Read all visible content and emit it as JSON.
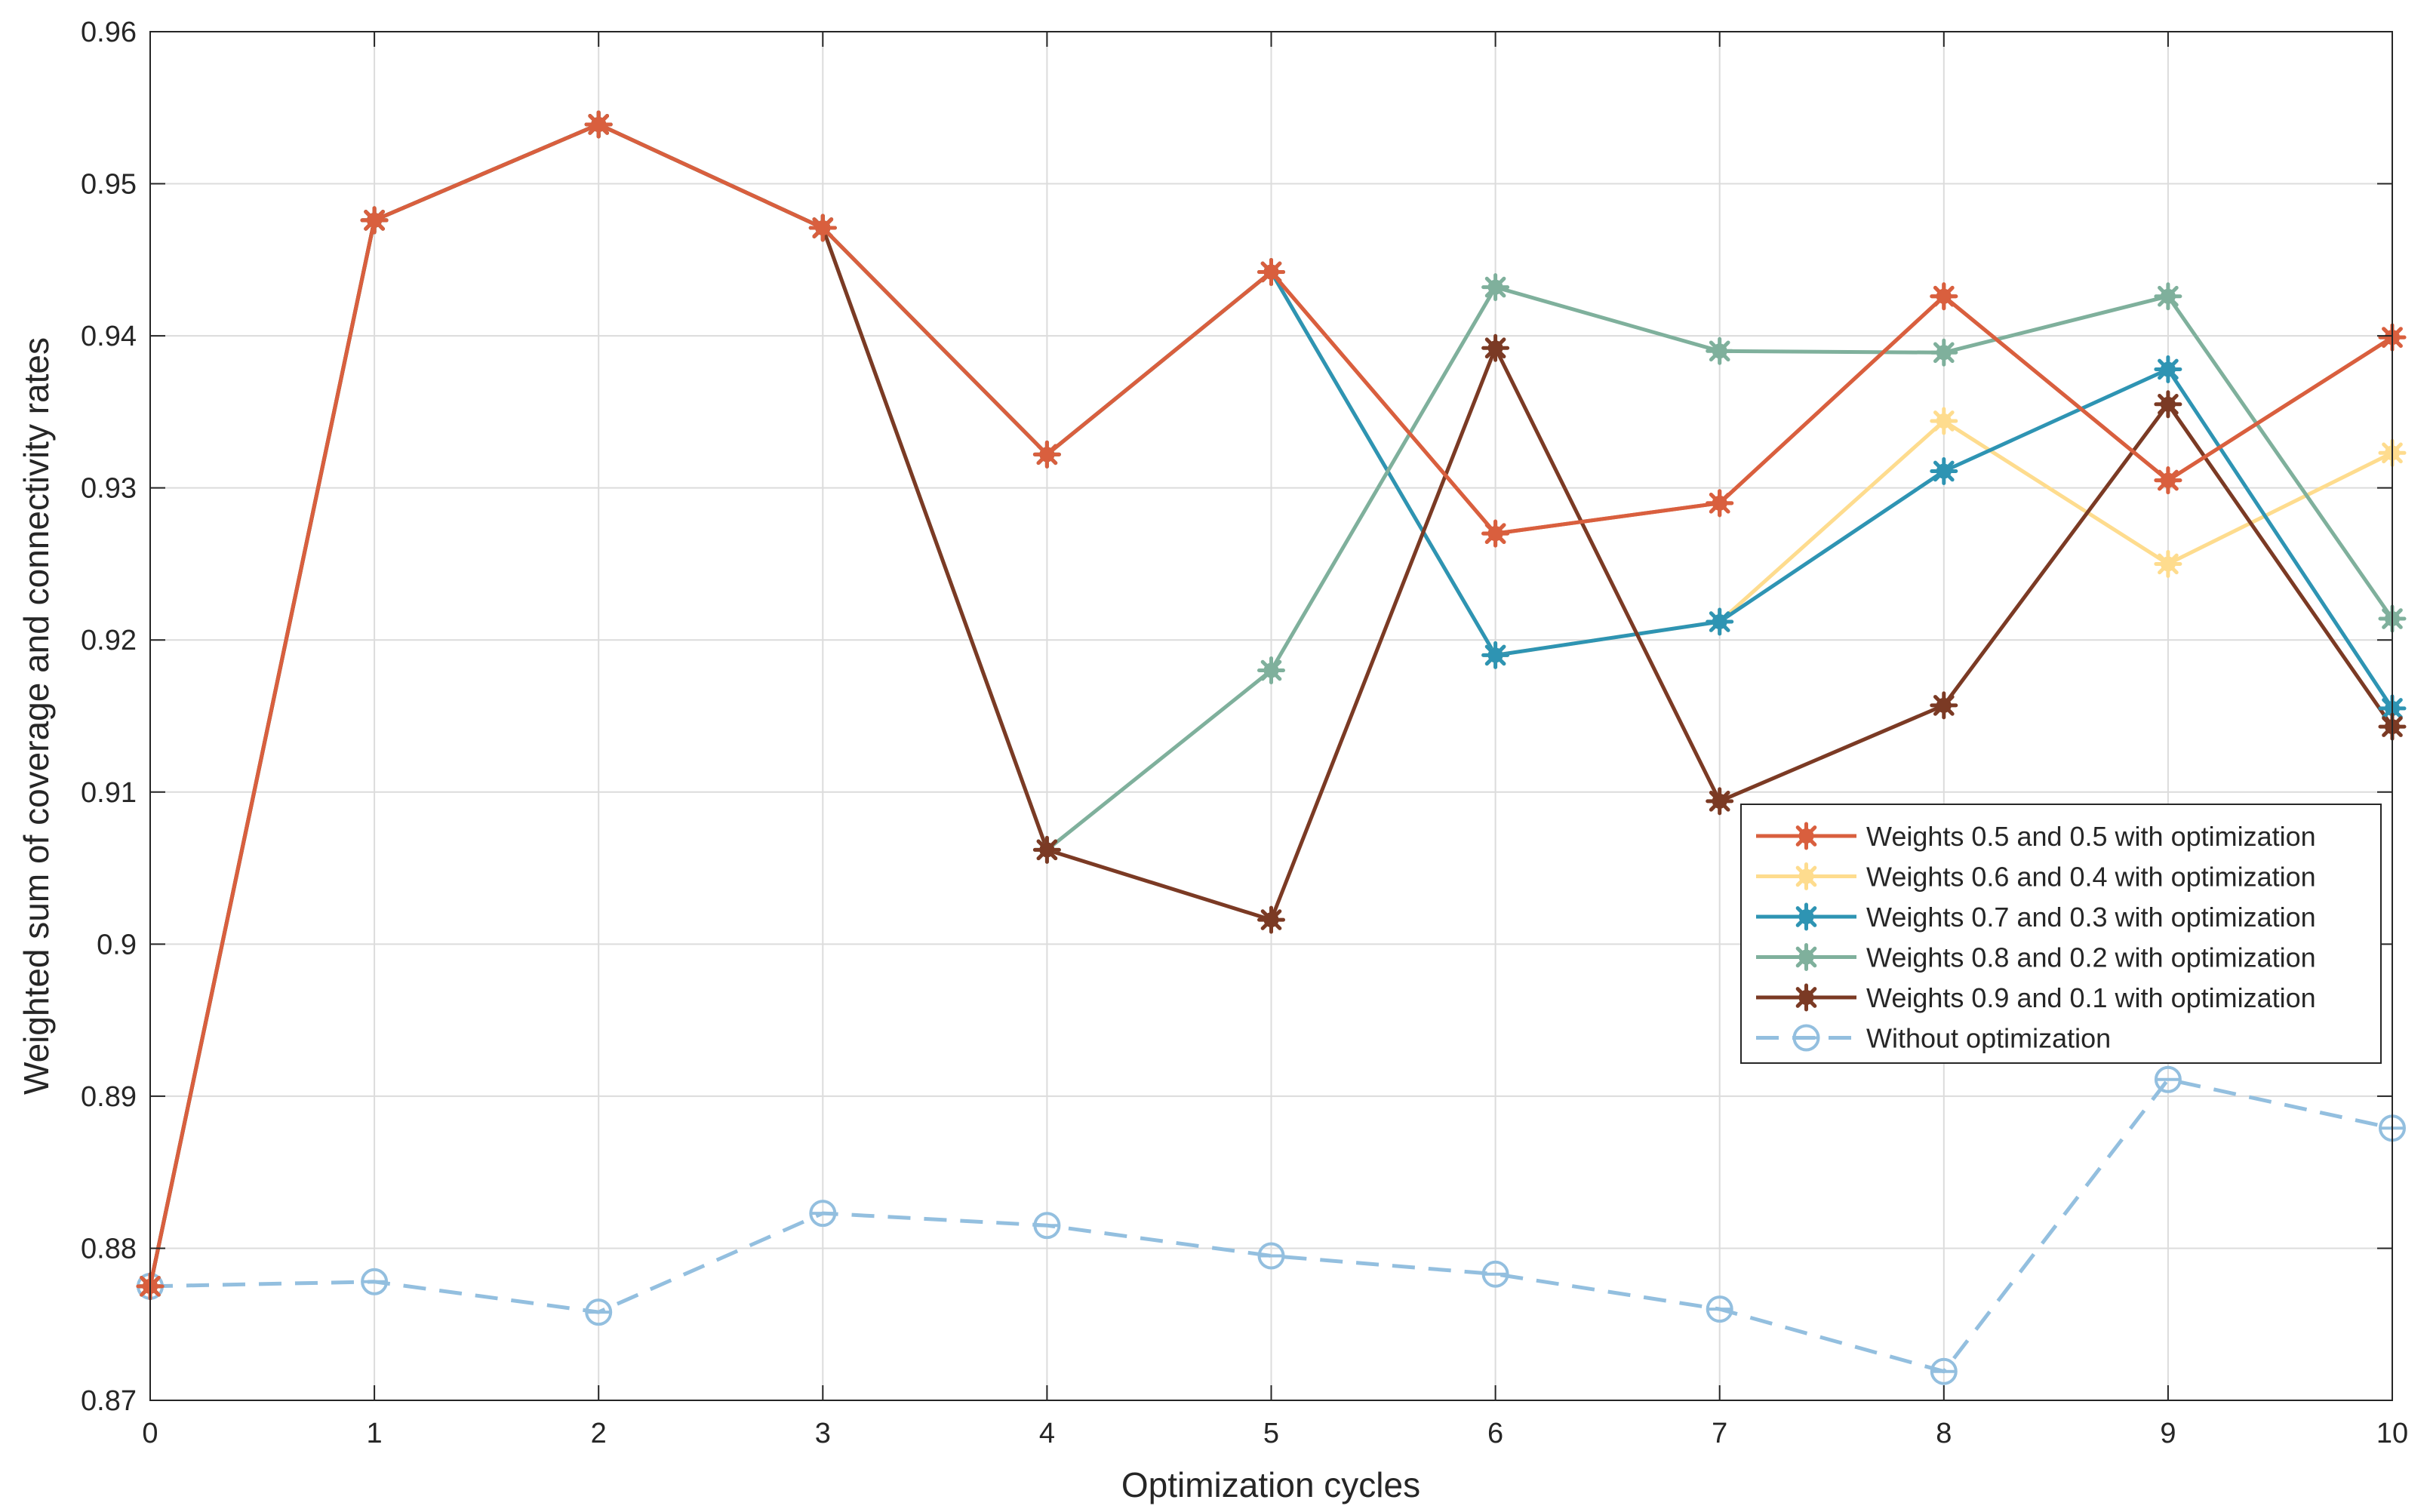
{
  "chart_data": {
    "type": "line",
    "title": "",
    "xlabel": "Optimization cycles",
    "ylabel": "Weighted sum of coverage and connectivity rates",
    "x": [
      0,
      1,
      2,
      3,
      4,
      5,
      6,
      7,
      8,
      9,
      10
    ],
    "xlim": [
      0,
      10
    ],
    "ylim": [
      0.87,
      0.96
    ],
    "xticks": [
      "0",
      "1",
      "2",
      "3",
      "4",
      "5",
      "6",
      "7",
      "8",
      "9",
      "10"
    ],
    "yticks": [
      "0.87",
      "0.88",
      "0.89",
      "0.9",
      "0.91",
      "0.92",
      "0.93",
      "0.94",
      "0.95",
      "0.96"
    ],
    "grid": true,
    "legend_position": "center-right",
    "series": [
      {
        "name": "Weights 0.5 and 0.5 with optimization",
        "color": "#d95f3e",
        "marker": "star",
        "dashed": false,
        "values": [
          0.8775,
          0.9476,
          0.9539,
          0.9471,
          0.9322,
          0.9442,
          0.927,
          0.929,
          0.9426,
          0.9305,
          0.9399
        ]
      },
      {
        "name": "Weights 0.6 and 0.4 with optimization",
        "color": "#fedc8e",
        "marker": "star",
        "dashed": false,
        "values": [
          0.8775,
          0.9476,
          0.9539,
          0.9471,
          0.9322,
          0.9442,
          0.919,
          0.9212,
          0.9344,
          0.925,
          0.9323
        ]
      },
      {
        "name": "Weights 0.7 and 0.3 with optimization",
        "color": "#2e94b3",
        "marker": "star",
        "dashed": false,
        "values": [
          0.8775,
          0.9476,
          0.9539,
          0.9471,
          0.9322,
          0.9442,
          0.919,
          0.9212,
          0.9311,
          0.9378,
          0.9155
        ]
      },
      {
        "name": "Weights 0.8 and 0.2 with optimization",
        "color": "#7fb09c",
        "marker": "star",
        "dashed": false,
        "values": [
          0.8775,
          0.9476,
          0.9539,
          0.9471,
          0.9062,
          0.918,
          0.9432,
          0.939,
          0.9389,
          0.9426,
          0.9214
        ]
      },
      {
        "name": "Weights 0.9 and 0.1 with optimization",
        "color": "#7b3a24",
        "marker": "star",
        "dashed": false,
        "values": [
          0.8775,
          0.9476,
          0.9539,
          0.9471,
          0.9062,
          0.9016,
          0.9392,
          0.9094,
          0.9157,
          0.9355,
          0.9143
        ]
      },
      {
        "name": "Without optimization",
        "color": "#93bfdf",
        "marker": "circle",
        "dashed": true,
        "values": [
          0.8775,
          0.8778,
          0.8758,
          0.8823,
          0.8815,
          0.8795,
          0.8783,
          0.876,
          0.8719,
          0.8911,
          0.8879
        ]
      }
    ]
  }
}
